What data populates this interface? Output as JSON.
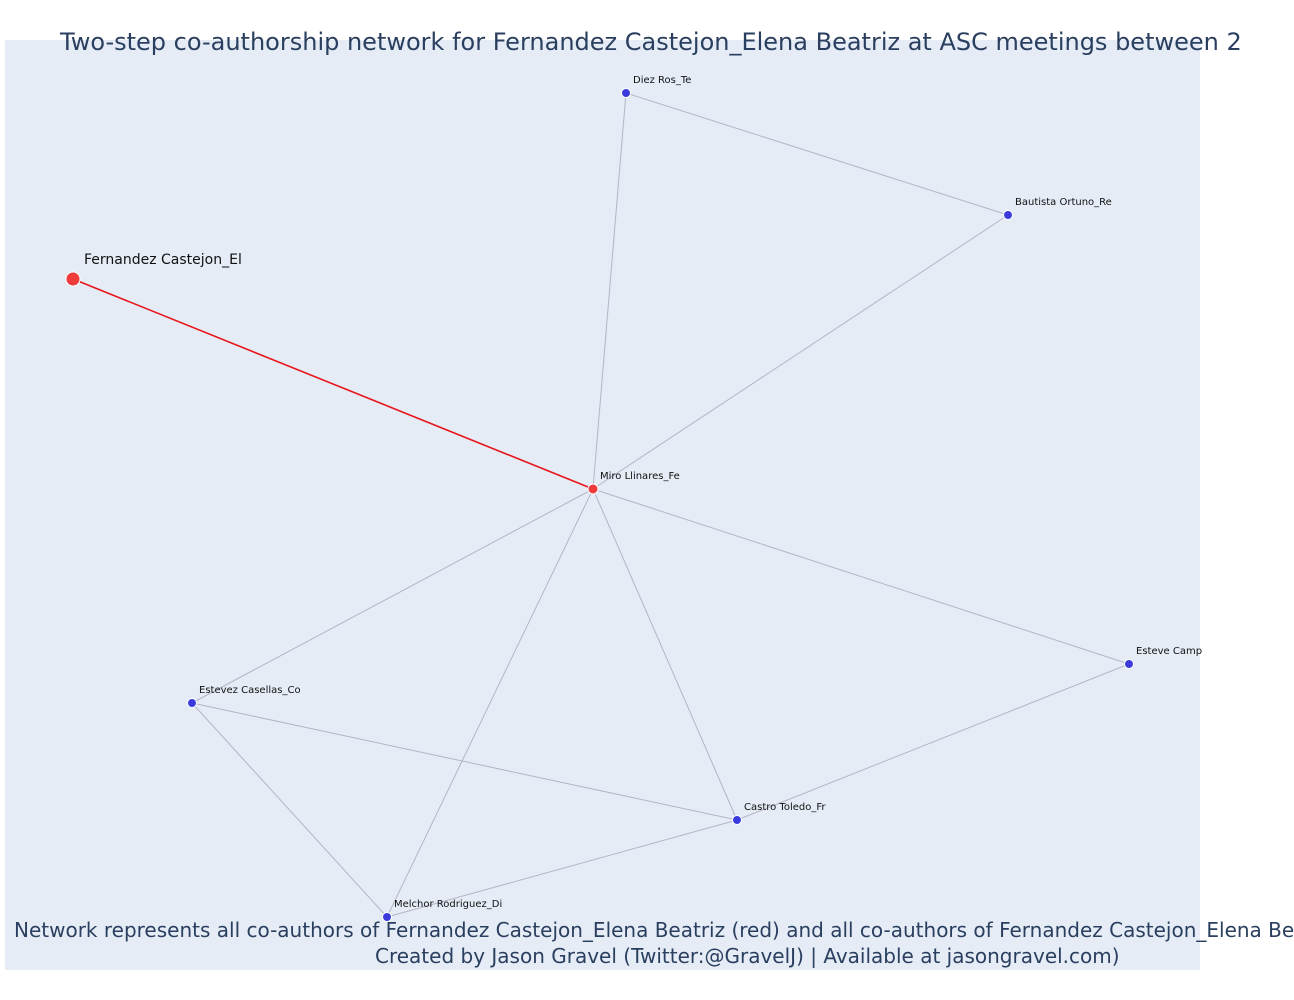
{
  "title": "Two-step co-authorship network for Fernandez Castejon_Elena Beatriz at ASC meetings between 2",
  "caption": {
    "line1": "Network represents all co-authors of Fernandez Castejon_Elena Beatriz (red) and all co-authors of Fernandez Castejon_Elena Be",
    "line2": "Created by Jason Gravel (Twitter:@GravelJ) | Available at jasongravel.com)"
  },
  "colors": {
    "background": "#e5ecf6",
    "focal": "#ef3b3b",
    "coauthor_node": "#3b3bdd",
    "focal_edge": "#e8161b",
    "edge": "#b5b5c8",
    "title_text": "#2a3f5f"
  },
  "nodes": [
    {
      "id": "fernandez",
      "label": "Fernandez Castejon_El",
      "type": "focal"
    },
    {
      "id": "miro",
      "label": "Miro Llinares_Fe",
      "type": "direct-coauthor"
    },
    {
      "id": "diez",
      "label": "Diez Ros_Te",
      "type": "second-step"
    },
    {
      "id": "bautista",
      "label": "Bautista Ortuno_Re",
      "type": "second-step"
    },
    {
      "id": "estevez",
      "label": "Estevez Casellas_Co",
      "type": "second-step"
    },
    {
      "id": "esteve",
      "label": "Esteve Camp",
      "type": "second-step"
    },
    {
      "id": "castro",
      "label": "Castro Toledo_Fr",
      "type": "second-step"
    },
    {
      "id": "melchor",
      "label": "Melchor Rodriguez_Di",
      "type": "second-step"
    }
  ],
  "edges": [
    {
      "source": "fernandez",
      "target": "miro",
      "focal": true
    },
    {
      "source": "miro",
      "target": "diez",
      "focal": false
    },
    {
      "source": "miro",
      "target": "bautista",
      "focal": false
    },
    {
      "source": "diez",
      "target": "bautista",
      "focal": false
    },
    {
      "source": "miro",
      "target": "estevez",
      "focal": false
    },
    {
      "source": "miro",
      "target": "melchor",
      "focal": false
    },
    {
      "source": "miro",
      "target": "castro",
      "focal": false
    },
    {
      "source": "miro",
      "target": "esteve",
      "focal": false
    },
    {
      "source": "estevez",
      "target": "castro",
      "focal": false
    },
    {
      "source": "estevez",
      "target": "melchor",
      "focal": false
    },
    {
      "source": "melchor",
      "target": "castro",
      "focal": false
    },
    {
      "source": "castro",
      "target": "esteve",
      "focal": false
    }
  ]
}
